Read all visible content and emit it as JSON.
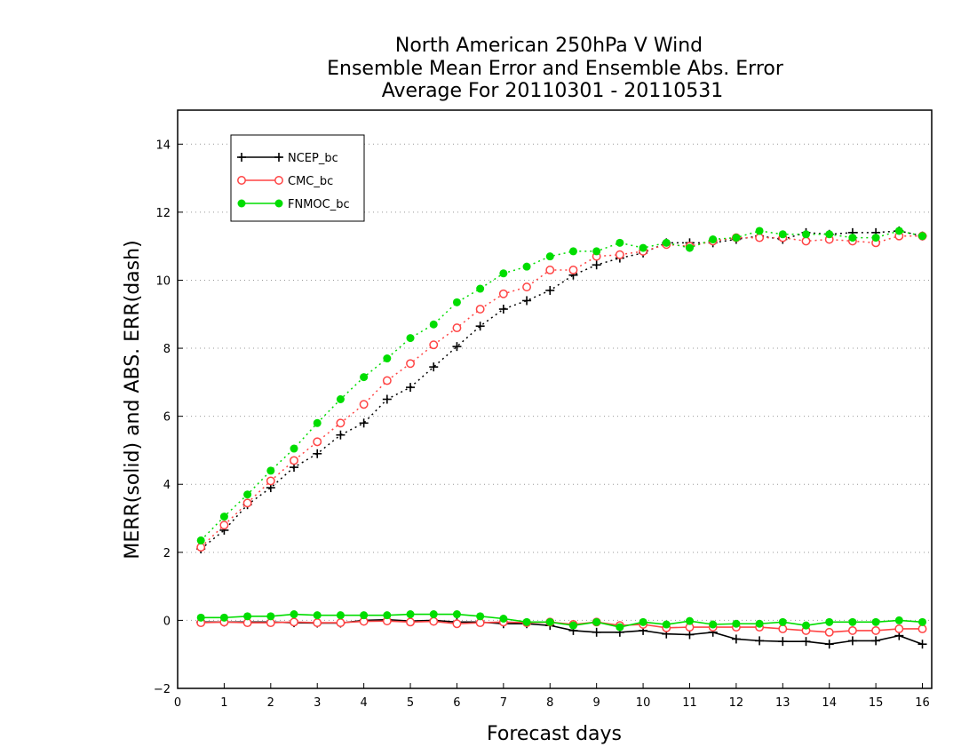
{
  "chart_data": {
    "type": "line",
    "title_lines": [
      "North American 250hPa V Wind",
      "Ensemble Mean Error and Ensemble Abs. Error",
      "Average For 20110301 - 20110531"
    ],
    "xlabel": "Forecast days",
    "ylabel": "MERR(solid) and ABS. ERR(dash)",
    "xlim": [
      0,
      16.2
    ],
    "ylim": [
      -2,
      15
    ],
    "x_ticks": [
      0,
      1,
      2,
      3,
      4,
      5,
      6,
      7,
      8,
      9,
      10,
      11,
      12,
      13,
      14,
      15,
      16
    ],
    "y_ticks": [
      -2,
      0,
      2,
      4,
      6,
      8,
      10,
      12,
      14
    ],
    "grid": "horizontal dotted",
    "legend_position": "top-left",
    "x": [
      0.5,
      1,
      1.5,
      2,
      2.5,
      3,
      3.5,
      4,
      4.5,
      5,
      5.5,
      6,
      6.5,
      7,
      7.5,
      8,
      8.5,
      9,
      9.5,
      10,
      10.5,
      11,
      11.5,
      12,
      12.5,
      13,
      13.5,
      14,
      14.5,
      15,
      15.5,
      16
    ],
    "series": [
      {
        "name": "NCEP_bc",
        "color": "#000000",
        "marker": "plus",
        "merr": [
          -0.05,
          -0.05,
          -0.05,
          -0.05,
          -0.07,
          -0.08,
          -0.08,
          0.0,
          0.02,
          -0.02,
          0.0,
          -0.05,
          -0.05,
          -0.1,
          -0.1,
          -0.15,
          -0.3,
          -0.35,
          -0.35,
          -0.3,
          -0.4,
          -0.42,
          -0.35,
          -0.55,
          -0.6,
          -0.62,
          -0.62,
          -0.7,
          -0.6,
          -0.6,
          -0.45,
          -0.7
        ],
        "abs_err": [
          2.1,
          2.65,
          3.4,
          3.9,
          4.5,
          4.9,
          5.45,
          5.8,
          6.5,
          6.85,
          7.45,
          8.05,
          8.65,
          9.15,
          9.4,
          9.7,
          10.15,
          10.45,
          10.65,
          10.8,
          11.1,
          11.1,
          11.1,
          11.2,
          11.3,
          11.2,
          11.4,
          11.35,
          11.4,
          11.4,
          11.45,
          11.3
        ]
      },
      {
        "name": "CMC_bc",
        "color": "#ff4444",
        "marker": "circle-open",
        "merr": [
          -0.07,
          -0.05,
          -0.07,
          -0.07,
          -0.05,
          -0.07,
          -0.07,
          -0.03,
          -0.02,
          -0.05,
          -0.03,
          -0.1,
          -0.07,
          -0.05,
          -0.07,
          -0.05,
          -0.12,
          -0.05,
          -0.15,
          -0.12,
          -0.22,
          -0.2,
          -0.2,
          -0.2,
          -0.2,
          -0.25,
          -0.3,
          -0.35,
          -0.3,
          -0.3,
          -0.25,
          -0.25
        ],
        "abs_err": [
          2.15,
          2.8,
          3.45,
          4.1,
          4.7,
          5.25,
          5.8,
          6.35,
          7.05,
          7.55,
          8.1,
          8.6,
          9.15,
          9.6,
          9.8,
          10.3,
          10.3,
          10.7,
          10.75,
          10.85,
          11.05,
          11.0,
          11.15,
          11.25,
          11.25,
          11.25,
          11.15,
          11.2,
          11.15,
          11.1,
          11.3,
          11.3
        ]
      },
      {
        "name": "FNMOC_bc",
        "color": "#00dd00",
        "marker": "circle-filled",
        "merr": [
          0.08,
          0.08,
          0.12,
          0.12,
          0.18,
          0.15,
          0.15,
          0.15,
          0.15,
          0.18,
          0.18,
          0.18,
          0.12,
          0.05,
          -0.05,
          -0.05,
          -0.15,
          -0.05,
          -0.2,
          -0.05,
          -0.12,
          -0.02,
          -0.12,
          -0.1,
          -0.1,
          -0.05,
          -0.15,
          -0.05,
          -0.05,
          -0.05,
          0.0,
          -0.05
        ],
        "abs_err": [
          2.35,
          3.05,
          3.7,
          4.4,
          5.05,
          5.8,
          6.5,
          7.15,
          7.7,
          8.3,
          8.7,
          9.35,
          9.75,
          10.2,
          10.4,
          10.7,
          10.85,
          10.85,
          11.1,
          10.95,
          11.1,
          10.95,
          11.2,
          11.25,
          11.45,
          11.35,
          11.35,
          11.35,
          11.25,
          11.25,
          11.45,
          11.3
        ]
      }
    ]
  }
}
